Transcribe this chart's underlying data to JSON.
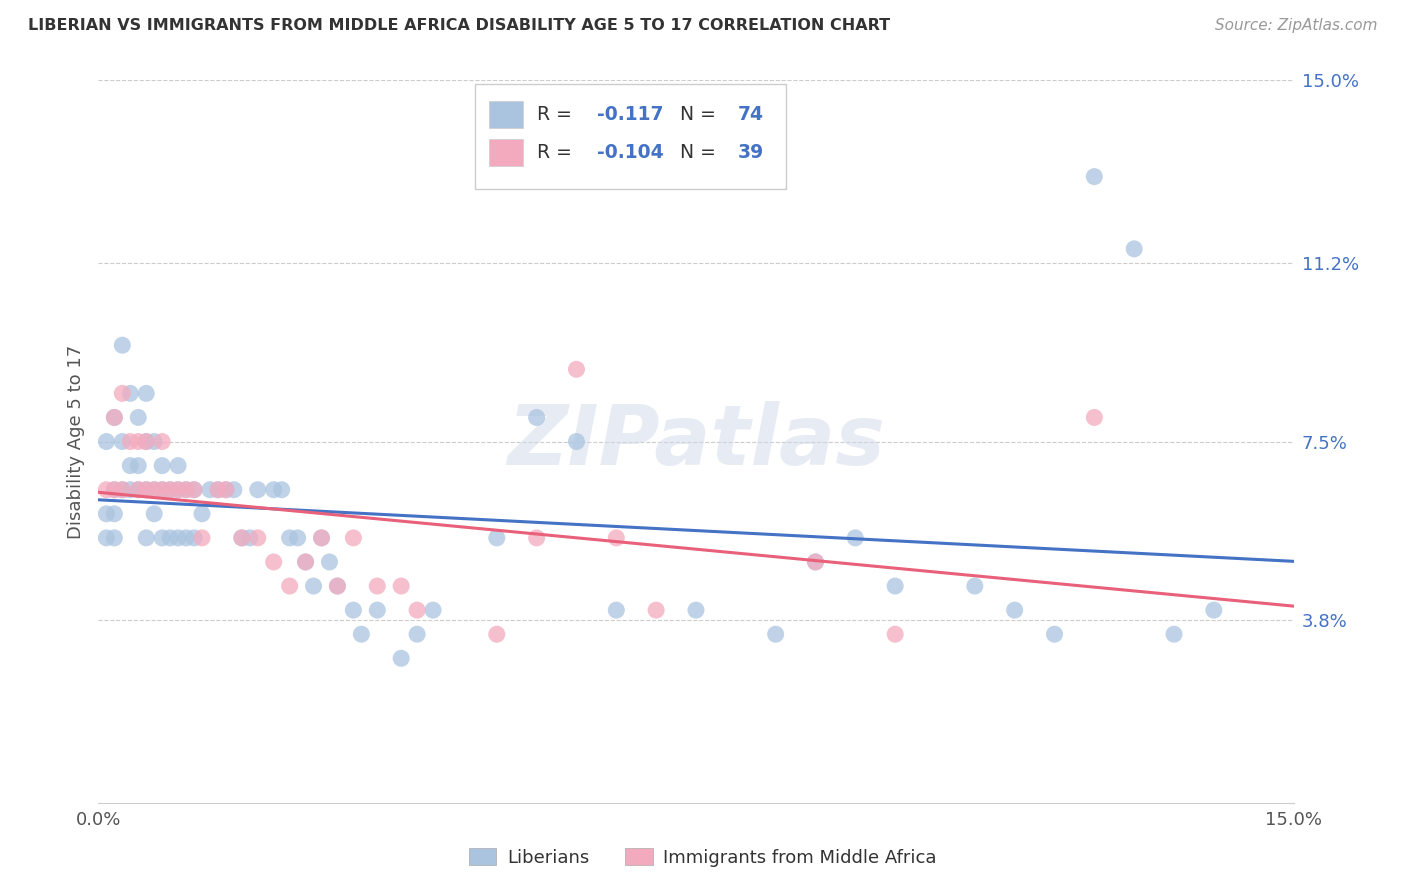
{
  "title": "LIBERIAN VS IMMIGRANTS FROM MIDDLE AFRICA DISABILITY AGE 5 TO 17 CORRELATION CHART",
  "source": "Source: ZipAtlas.com",
  "ylabel": "Disability Age 5 to 17",
  "xlim": [
    0.0,
    0.15
  ],
  "ylim": [
    0.0,
    0.15
  ],
  "ytick_labels": [
    "15.0%",
    "11.2%",
    "7.5%",
    "3.8%"
  ],
  "ytick_vals": [
    0.15,
    0.112,
    0.075,
    0.038
  ],
  "liberian_color": "#aac4e0",
  "immigrant_color": "#f4aabe",
  "liberian_line_color": "#4472c4",
  "immigrant_line_color": "#e8607a",
  "liberian_R": -0.117,
  "liberian_N": 74,
  "immigrant_R": -0.104,
  "immigrant_N": 39,
  "watermark": "ZIPatlas",
  "liberian_x": [
    0.001,
    0.001,
    0.001,
    0.002,
    0.002,
    0.002,
    0.002,
    0.003,
    0.003,
    0.003,
    0.004,
    0.004,
    0.004,
    0.005,
    0.005,
    0.005,
    0.006,
    0.006,
    0.006,
    0.006,
    0.007,
    0.007,
    0.007,
    0.008,
    0.008,
    0.008,
    0.009,
    0.009,
    0.01,
    0.01,
    0.01,
    0.011,
    0.011,
    0.012,
    0.012,
    0.013,
    0.014,
    0.015,
    0.016,
    0.017,
    0.018,
    0.019,
    0.02,
    0.022,
    0.023,
    0.024,
    0.025,
    0.026,
    0.027,
    0.028,
    0.029,
    0.03,
    0.032,
    0.033,
    0.035,
    0.038,
    0.04,
    0.042,
    0.05,
    0.055,
    0.06,
    0.065,
    0.075,
    0.085,
    0.09,
    0.095,
    0.1,
    0.11,
    0.115,
    0.12,
    0.125,
    0.13,
    0.135,
    0.14
  ],
  "liberian_y": [
    0.075,
    0.06,
    0.055,
    0.08,
    0.065,
    0.06,
    0.055,
    0.095,
    0.075,
    0.065,
    0.085,
    0.07,
    0.065,
    0.08,
    0.07,
    0.065,
    0.085,
    0.075,
    0.065,
    0.055,
    0.075,
    0.065,
    0.06,
    0.07,
    0.065,
    0.055,
    0.065,
    0.055,
    0.07,
    0.065,
    0.055,
    0.065,
    0.055,
    0.065,
    0.055,
    0.06,
    0.065,
    0.065,
    0.065,
    0.065,
    0.055,
    0.055,
    0.065,
    0.065,
    0.065,
    0.055,
    0.055,
    0.05,
    0.045,
    0.055,
    0.05,
    0.045,
    0.04,
    0.035,
    0.04,
    0.03,
    0.035,
    0.04,
    0.055,
    0.08,
    0.075,
    0.04,
    0.04,
    0.035,
    0.05,
    0.055,
    0.045,
    0.045,
    0.04,
    0.035,
    0.13,
    0.115,
    0.035,
    0.04
  ],
  "immigrant_x": [
    0.001,
    0.002,
    0.002,
    0.003,
    0.003,
    0.004,
    0.005,
    0.005,
    0.006,
    0.006,
    0.007,
    0.008,
    0.008,
    0.009,
    0.01,
    0.011,
    0.012,
    0.013,
    0.015,
    0.016,
    0.018,
    0.02,
    0.022,
    0.024,
    0.026,
    0.028,
    0.03,
    0.032,
    0.035,
    0.038,
    0.04,
    0.05,
    0.055,
    0.06,
    0.065,
    0.07,
    0.09,
    0.1,
    0.125
  ],
  "immigrant_y": [
    0.065,
    0.08,
    0.065,
    0.085,
    0.065,
    0.075,
    0.075,
    0.065,
    0.075,
    0.065,
    0.065,
    0.075,
    0.065,
    0.065,
    0.065,
    0.065,
    0.065,
    0.055,
    0.065,
    0.065,
    0.055,
    0.055,
    0.05,
    0.045,
    0.05,
    0.055,
    0.045,
    0.055,
    0.045,
    0.045,
    0.04,
    0.035,
    0.055,
    0.09,
    0.055,
    0.04,
    0.05,
    0.035,
    0.08
  ]
}
